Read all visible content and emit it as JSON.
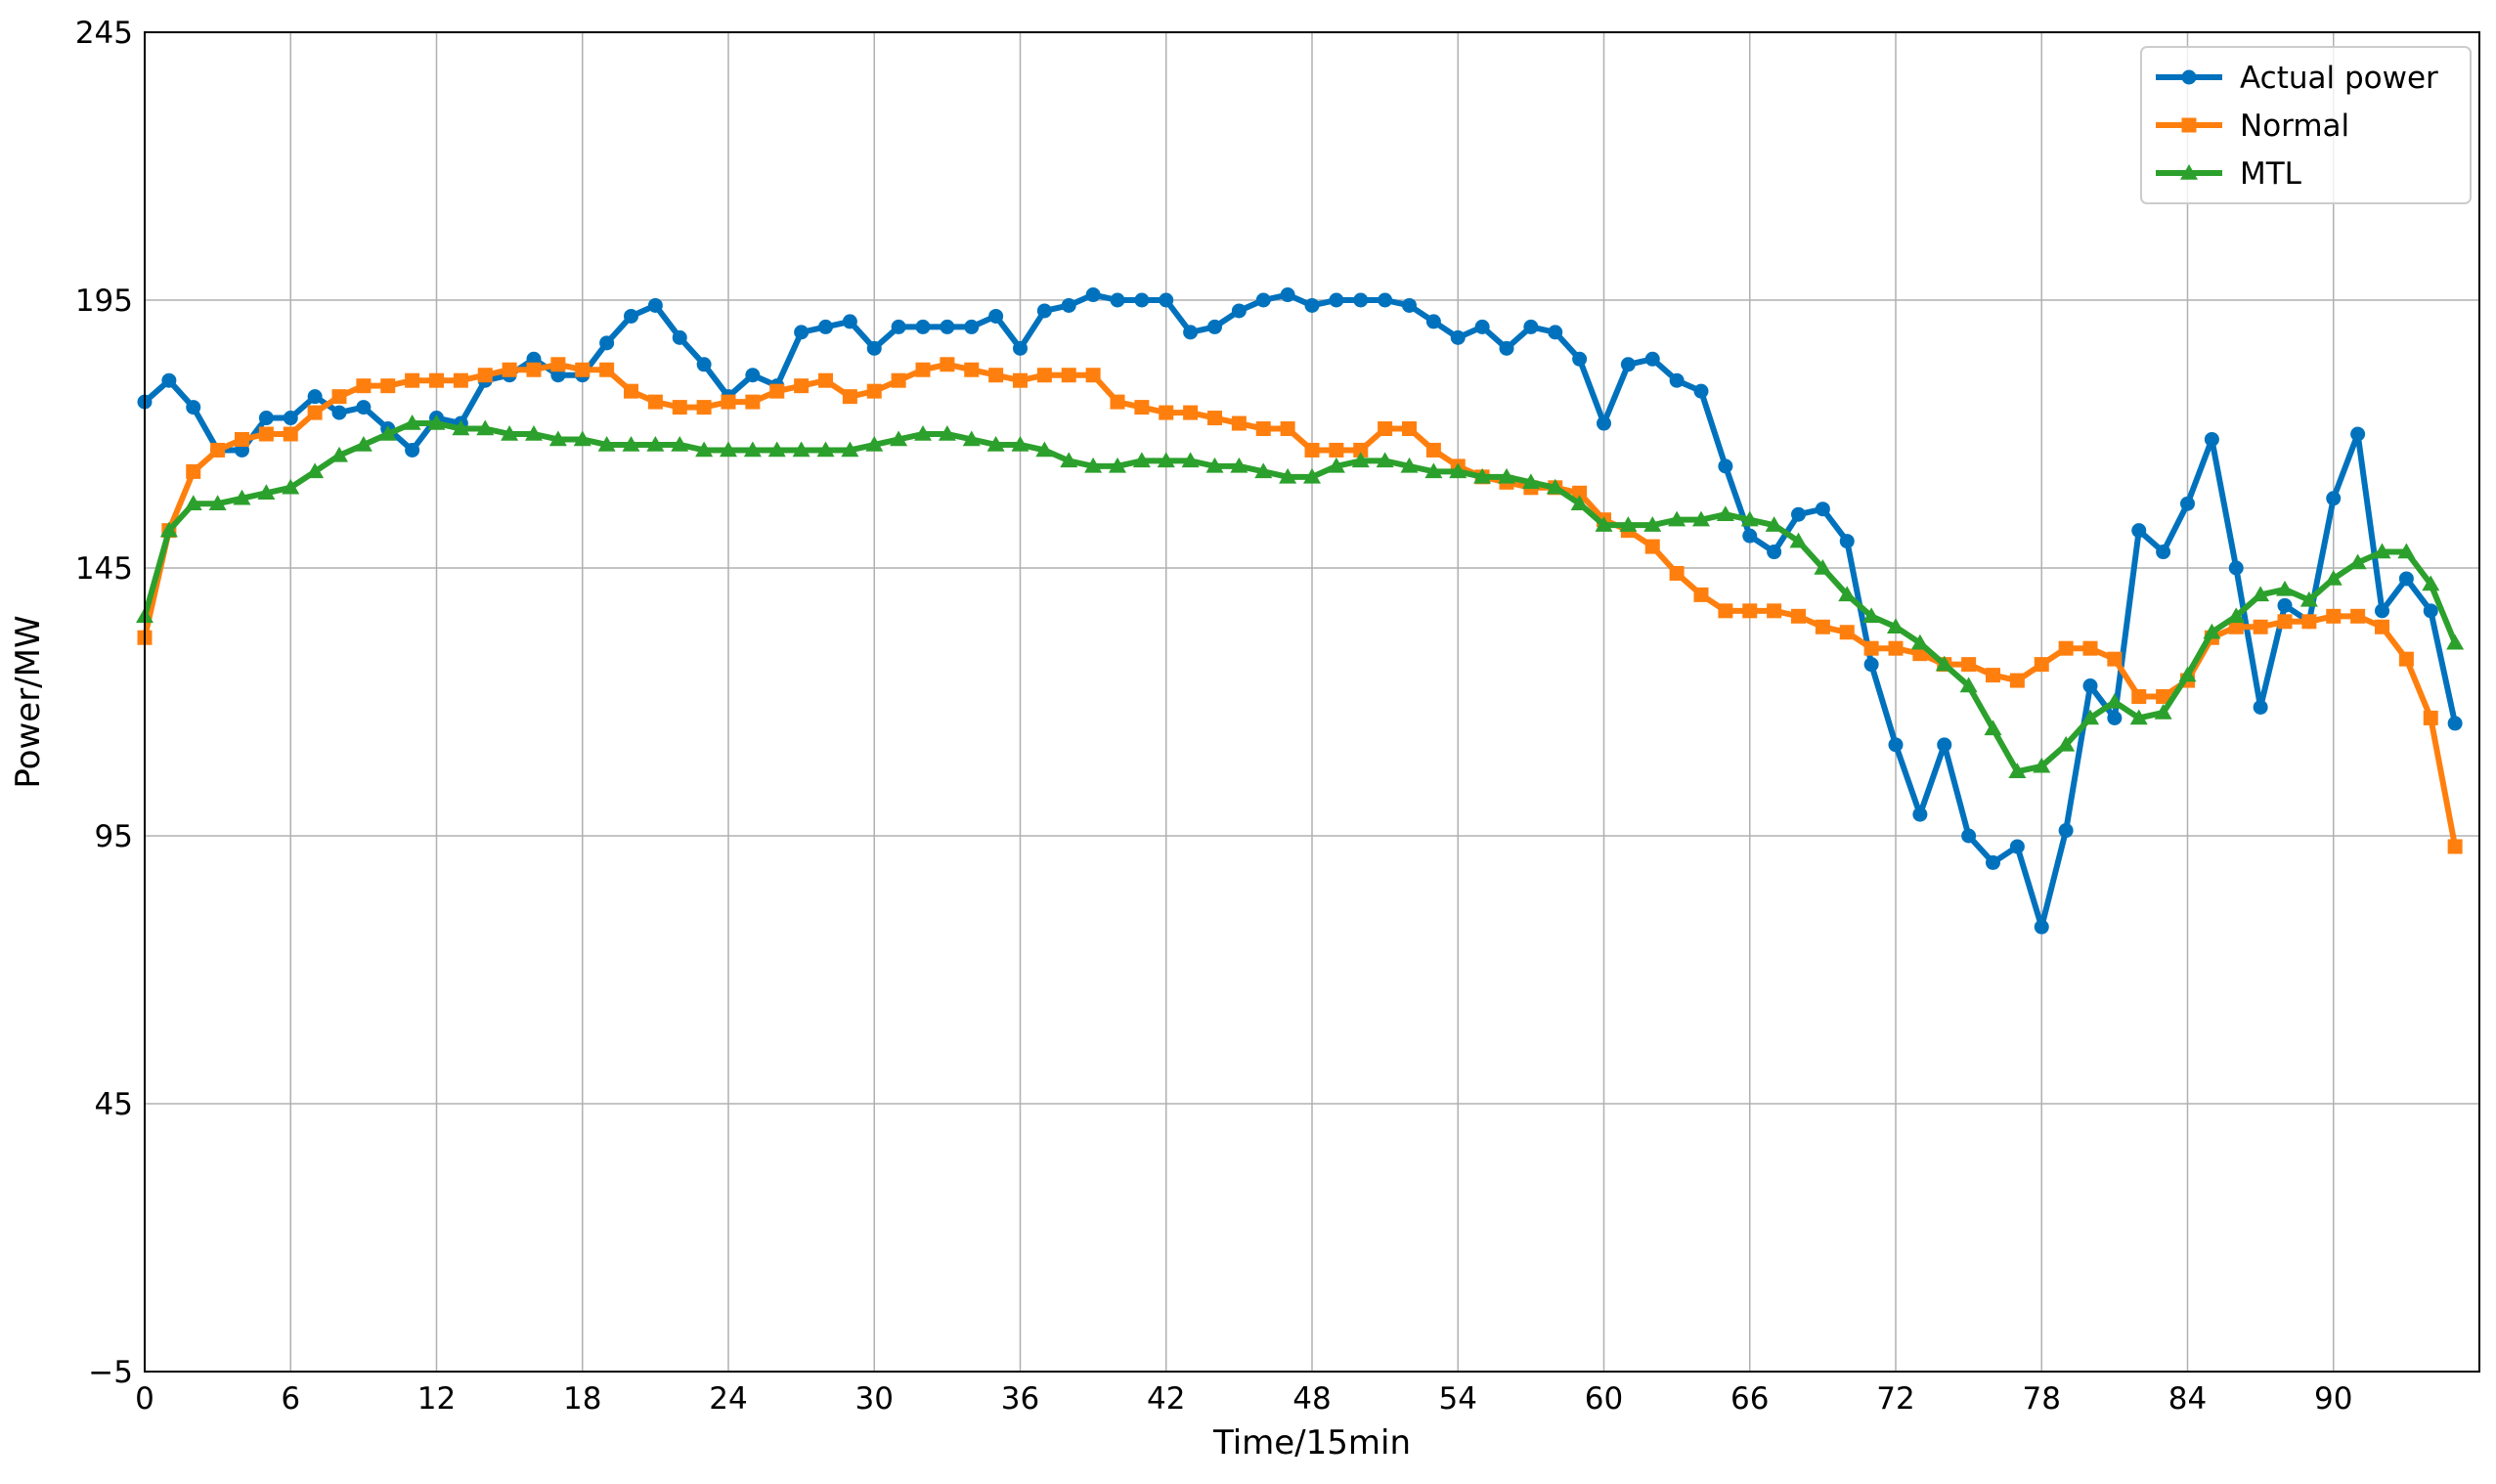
{
  "chart_data": {
    "type": "line",
    "title": "",
    "xlabel": "Time/15min",
    "ylabel": "Power/MW",
    "xlim": [
      0,
      96
    ],
    "ylim": [
      -5,
      245
    ],
    "xticks": [
      0,
      6,
      12,
      18,
      24,
      30,
      36,
      42,
      48,
      54,
      60,
      66,
      72,
      78,
      84,
      90
    ],
    "xtick_labels": [
      "0",
      "6",
      "12",
      "18",
      "24",
      "30",
      "36",
      "42",
      "48",
      "54",
      "60",
      "66",
      "72",
      "78",
      "84",
      "90"
    ],
    "yticks": [
      -5,
      45,
      95,
      145,
      195,
      245
    ],
    "ytick_labels": [
      "−5",
      "45",
      "95",
      "145",
      "195",
      "245"
    ],
    "grid": true,
    "legend_position": "top-right",
    "series": [
      {
        "name": "Actual power",
        "color": "#0072bd",
        "marker": "circle",
        "values": [
          176,
          180,
          175,
          167,
          167,
          173,
          173,
          177,
          174,
          175,
          171,
          167,
          173,
          172,
          180,
          181,
          184,
          181,
          181,
          187,
          192,
          194,
          188,
          183,
          177,
          181,
          179,
          189,
          190,
          191,
          186,
          190,
          190,
          190,
          190,
          192,
          186,
          193,
          194,
          196,
          195,
          195,
          195,
          189,
          190,
          193,
          195,
          196,
          194,
          195,
          195,
          195,
          194,
          191,
          188,
          190,
          186,
          190,
          189,
          184,
          172,
          183,
          184,
          180,
          178,
          164,
          151,
          148,
          155,
          156,
          150,
          127,
          112,
          99,
          112,
          95,
          90,
          93,
          78,
          96,
          123,
          117,
          152,
          148,
          157,
          169,
          145,
          119,
          138,
          135,
          158,
          170,
          137,
          143,
          137,
          116
        ]
      },
      {
        "name": "Normal",
        "color": "#ff7f0e",
        "marker": "square",
        "values": [
          132,
          152,
          163,
          167,
          169,
          170,
          170,
          174,
          177,
          179,
          179,
          180,
          180,
          180,
          181,
          182,
          182,
          183,
          182,
          182,
          178,
          176,
          175,
          175,
          176,
          176,
          178,
          179,
          180,
          177,
          178,
          180,
          182,
          183,
          182,
          181,
          180,
          181,
          181,
          181,
          176,
          175,
          174,
          174,
          173,
          172,
          171,
          171,
          167,
          167,
          167,
          171,
          171,
          167,
          164,
          162,
          161,
          160,
          160,
          159,
          154,
          152,
          149,
          144,
          140,
          137,
          137,
          137,
          136,
          134,
          133,
          130,
          130,
          129,
          127,
          127,
          125,
          124,
          127,
          130,
          130,
          128,
          121,
          121,
          124,
          132,
          134,
          134,
          135,
          135,
          136,
          136,
          134,
          128,
          117,
          93
        ]
      },
      {
        "name": "MTL",
        "color": "#2ca02c",
        "marker": "triangle",
        "values": [
          136,
          152,
          157,
          157,
          158,
          159,
          160,
          163,
          166,
          168,
          170,
          172,
          172,
          171,
          171,
          170,
          170,
          169,
          169,
          168,
          168,
          168,
          168,
          167,
          167,
          167,
          167,
          167,
          167,
          167,
          168,
          169,
          170,
          170,
          169,
          168,
          168,
          167,
          165,
          164,
          164,
          165,
          165,
          165,
          164,
          164,
          163,
          162,
          162,
          164,
          165,
          165,
          164,
          163,
          163,
          162,
          162,
          161,
          160,
          157,
          153,
          153,
          153,
          154,
          154,
          155,
          154,
          153,
          150,
          145,
          140,
          136,
          134,
          131,
          127,
          123,
          115,
          107,
          108,
          112,
          117,
          120,
          117,
          118,
          125,
          133,
          136,
          140,
          141,
          139,
          143,
          146,
          148,
          148,
          142,
          131
        ]
      }
    ]
  }
}
